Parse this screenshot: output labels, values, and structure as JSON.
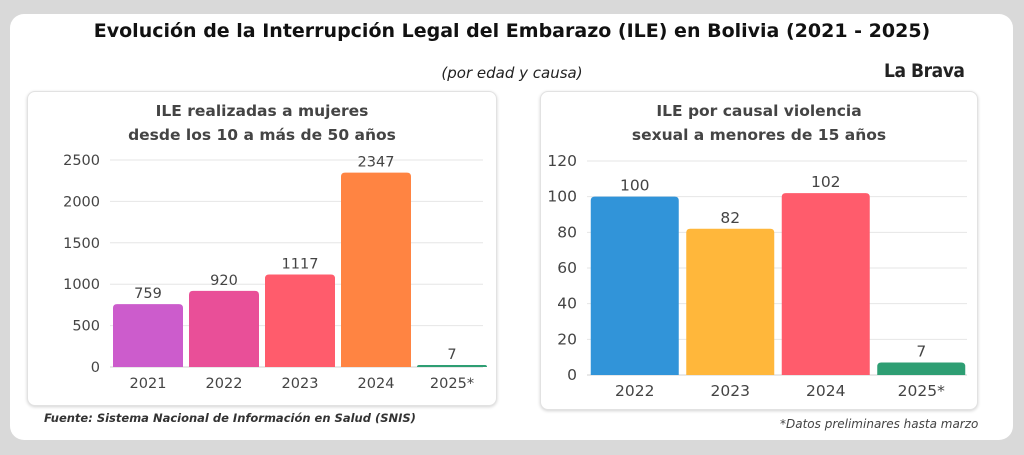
{
  "header": {
    "title": "Evolución de la Interrupción Legal del Embarazo (ILE) en Bolivia (2021 - 2025)",
    "subtitle": "(por edad y causa)",
    "brand": "La Brava"
  },
  "footer": {
    "source": "Fuente: Sistema Nacional de Información en Salud (SNIS)",
    "note": "*Datos preliminares hasta marzo"
  },
  "chart_data": [
    {
      "type": "bar",
      "title_lines": [
        "ILE realizadas a mujeres",
        "desde los 10 a más de 50 años"
      ],
      "categories": [
        "2021",
        "2022",
        "2023",
        "2024",
        "2025*"
      ],
      "values": [
        759,
        920,
        1117,
        2347,
        7
      ],
      "colors": [
        "#cc5ccc",
        "#e94f98",
        "#ff5c6c",
        "#ff8442",
        "#2e9e73"
      ],
      "yticks": [
        0,
        500,
        1000,
        1500,
        2000,
        2500
      ],
      "ylim": [
        0,
        2500
      ],
      "grid": true
    },
    {
      "type": "bar",
      "title_lines": [
        "ILE por causal violencia",
        "sexual a menores de 15 años"
      ],
      "categories": [
        "2022",
        "2023",
        "2024",
        "2025*"
      ],
      "values": [
        100,
        82,
        102,
        7
      ],
      "colors": [
        "#3194d9",
        "#ffb73b",
        "#ff5c6c",
        "#2e9e73"
      ],
      "yticks": [
        0,
        20,
        40,
        60,
        80,
        100,
        120
      ],
      "ylim": [
        0,
        120
      ],
      "grid": true
    }
  ]
}
